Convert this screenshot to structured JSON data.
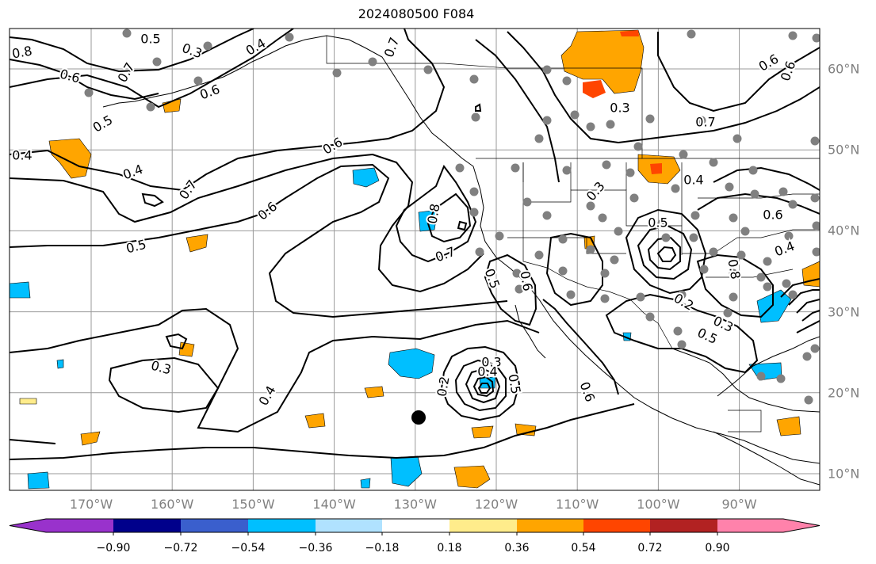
{
  "title": "2024080500 F084",
  "map": {
    "projection": "equirectangular",
    "lon_range": [
      -180,
      -80
    ],
    "lat_range": [
      8,
      65
    ],
    "lon_labels": [
      "170°W",
      "160°W",
      "150°W",
      "140°W",
      "130°W",
      "120°W",
      "110°W",
      "100°W",
      "90°W"
    ],
    "lat_labels": [
      "60°N",
      "50°N",
      "40°N",
      "30°N",
      "20°N",
      "10°N"
    ],
    "marker": "black-dot",
    "station_icon": "gray-dot"
  },
  "contour_labels": [
    "0.8",
    "0.6",
    "0.7",
    "0.3",
    "0.4",
    "0.5",
    "0.6",
    "0.4",
    "0.5",
    "0.7",
    "0.6",
    "0.5",
    "0.4",
    "0.6",
    "0.8",
    "0.7",
    "0.5",
    "0.6",
    "0.3",
    "0.4",
    "0.6",
    "0.5",
    "0.3",
    "0.2",
    "0.3",
    "0.7",
    "0.4",
    "0.6",
    "0.5",
    "0.4",
    "0.3",
    "0.2",
    "0.3",
    "0.4",
    "0.5",
    "0.6",
    "0.6",
    "0.7",
    "0.8"
  ],
  "colorbar": {
    "ticks": [
      "−0.90",
      "−0.72",
      "−0.54",
      "−0.36",
      "−0.18",
      "0.18",
      "0.36",
      "0.54",
      "0.72",
      "0.90"
    ],
    "colors": [
      "#9932cc",
      "#00008b",
      "#3a5fcd",
      "#00bfff",
      "#b0e2ff",
      "#ffffff",
      "#ffec8b",
      "#ffa500",
      "#ff4500",
      "#b22222",
      "#ff82ab"
    ]
  }
}
